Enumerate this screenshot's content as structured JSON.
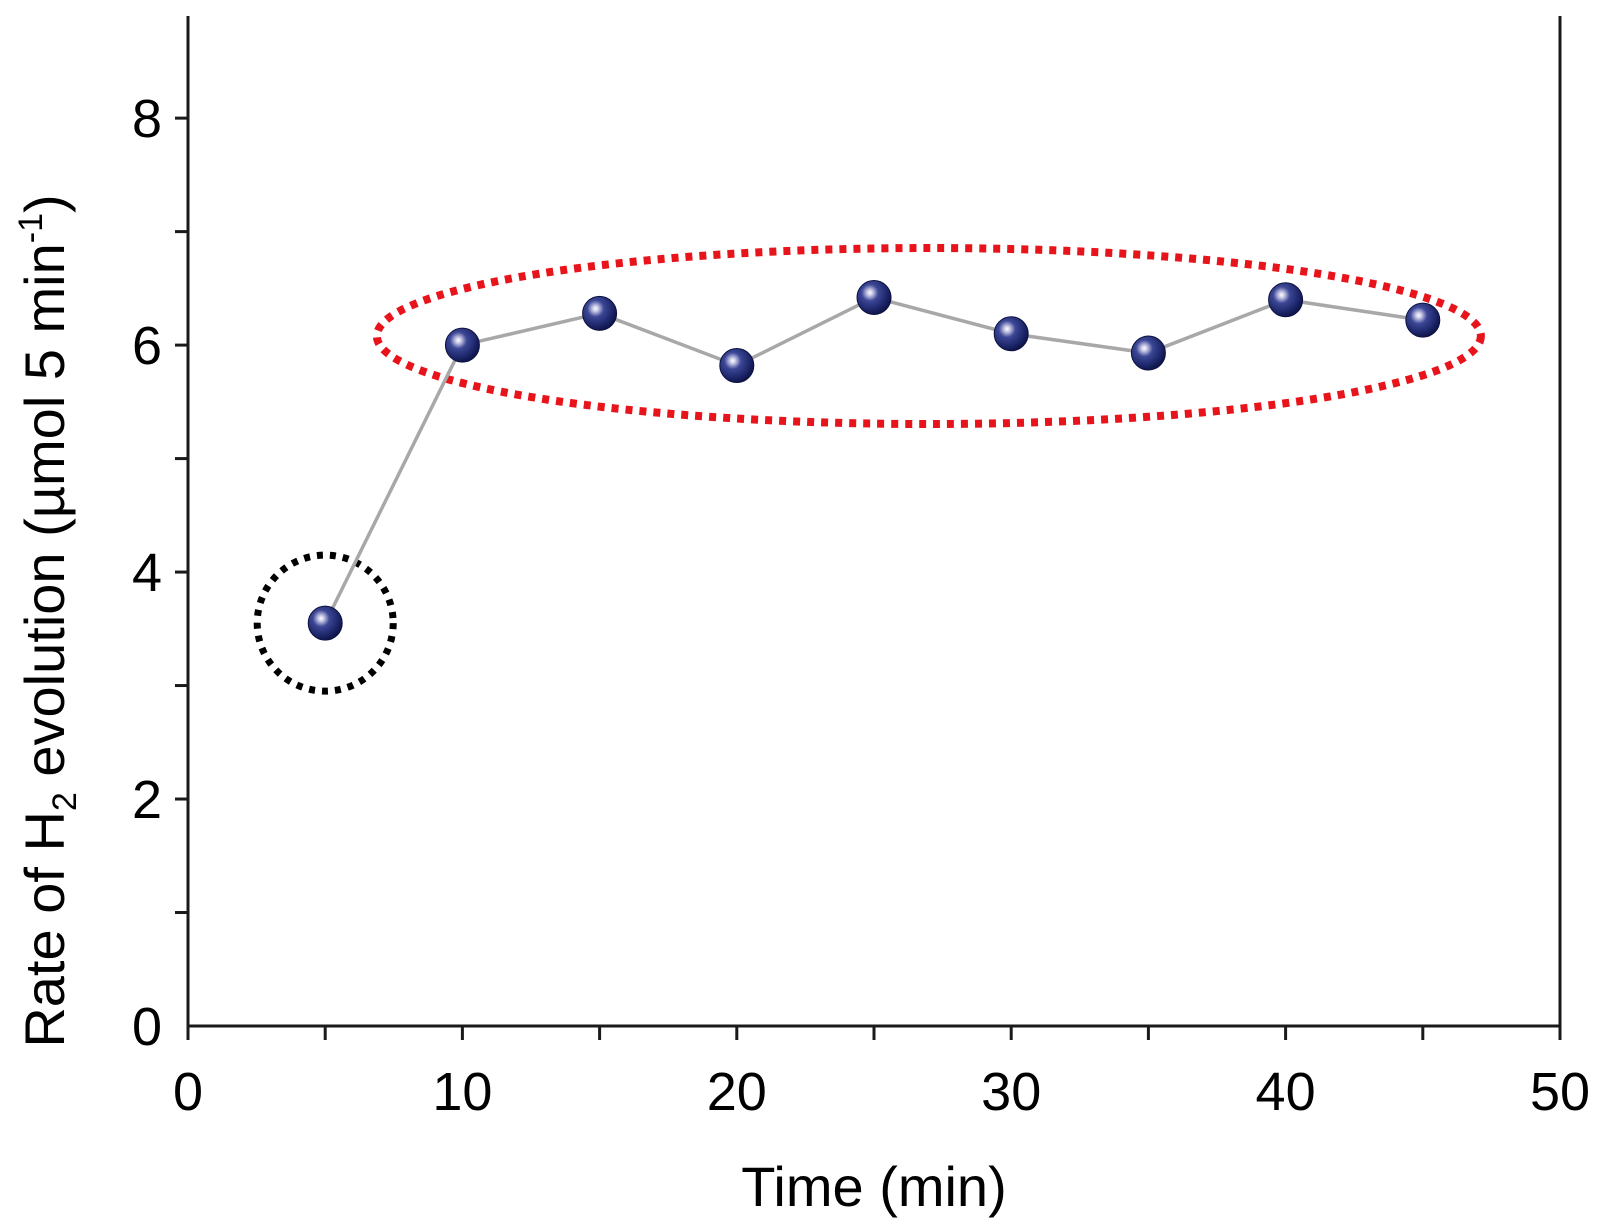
{
  "chart_data": {
    "type": "line",
    "xlabel": "Time (min)",
    "ylabel": {
      "prefix": "Rate of H",
      "subscript": "2",
      "middle": " evolution (µmol 5 min",
      "superscript": "-1",
      "suffix": ")"
    },
    "xlim": [
      0,
      50
    ],
    "ylim": [
      0,
      8.9
    ],
    "x_ticks": [
      0,
      10,
      20,
      30,
      40,
      50
    ],
    "x_tick_labels": [
      "0",
      "10",
      "20",
      "30",
      "40",
      "50"
    ],
    "y_ticks": [
      0,
      2,
      4,
      6,
      8
    ],
    "y_tick_labels": [
      "0",
      "2",
      "4",
      "6",
      "8"
    ],
    "grid": false,
    "series": [
      {
        "x": [
          5,
          10,
          15,
          20,
          25,
          30,
          35,
          40,
          45
        ],
        "y": [
          3.55,
          6.0,
          6.28,
          5.82,
          6.42,
          6.1,
          5.93,
          6.4,
          6.22
        ]
      }
    ],
    "annotations": [
      {
        "shape": "dotted-circle",
        "color": "#000000",
        "center": [
          5,
          3.55
        ]
      },
      {
        "shape": "dotted-ellipse",
        "color": "#e8141b",
        "center": [
          27.0,
          6.08
        ]
      }
    ],
    "colors": {
      "marker": "#1a2466",
      "line": "#a8a8a8",
      "axis": "#1a1a1a"
    }
  }
}
